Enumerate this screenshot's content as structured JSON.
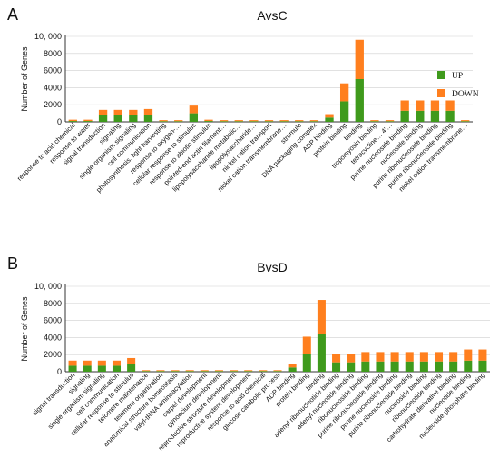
{
  "colors": {
    "up": "#3f9a1c",
    "down": "#ff7f1e",
    "axis": "#333333",
    "grid": "#cfcfcf"
  },
  "chart_data": [
    {
      "type": "bar",
      "stacked": true,
      "panel_label": "A",
      "title": "AvsC",
      "ylabel": "Number of Genes",
      "ylim": [
        0,
        10000
      ],
      "yticks": [
        "0",
        "2000",
        "4000",
        "6000",
        "8000",
        "10, 000"
      ],
      "grid": true,
      "legend_position": "right",
      "legend": [
        "UP",
        "DOWN"
      ],
      "categories": [
        "response to acid chemical",
        "response to water",
        "signal transduction",
        "signaling",
        "single organism signaling",
        "cell communication",
        "photosynthesis, light harvesting",
        "response to oxygen-…",
        "cellular response to stimulus",
        "response to abiotic stimulus",
        "pointed-end actin filament…",
        "lipopolysaccharide metabolic…",
        "lipopolysaccharide…",
        "nickel cation transport",
        "nickel cation transmembrane…",
        "stromule",
        "DNA packaging complex",
        "ADP binding",
        "protein binding",
        "binding",
        "tropomyosin binding",
        "tetracycline… 4'…",
        "purine nucleoside binding",
        "nucleoside binding",
        "purine ribonucleoside binding",
        "purine ribonucleoside binding",
        "nickel cation transmembrane…"
      ],
      "series": [
        {
          "name": "UP",
          "values": [
            100,
            100,
            800,
            800,
            800,
            800,
            80,
            80,
            1000,
            100,
            80,
            80,
            80,
            80,
            80,
            80,
            80,
            500,
            2400,
            5000,
            80,
            80,
            1300,
            1300,
            1300,
            1300,
            80
          ]
        },
        {
          "name": "DOWN",
          "values": [
            150,
            150,
            600,
            600,
            600,
            700,
            120,
            120,
            900,
            150,
            120,
            120,
            120,
            120,
            120,
            120,
            120,
            400,
            2100,
            4600,
            120,
            120,
            1200,
            1200,
            1200,
            1200,
            120
          ]
        }
      ]
    },
    {
      "type": "bar",
      "stacked": true,
      "panel_label": "B",
      "title": "BvsD",
      "ylabel": "Number of Genes",
      "ylim": [
        0,
        10000
      ],
      "yticks": [
        "0",
        "2000",
        "4000",
        "6000",
        "8000",
        "10, 000"
      ],
      "grid": true,
      "categories": [
        "signal transduction",
        "signaling",
        "single organism signaling",
        "cell communication",
        "cellular response to stimulus",
        "telomere maintenance",
        "telomere organization",
        "anatomical structure homeostasis",
        "valyl-tRNA aminoacylation",
        "carpel development",
        "gynoecium development",
        "reproductive structure development",
        "reproductive system development",
        "response to acid chemical",
        "glucose catabolic process",
        "ADP binding",
        "protein binding",
        "binding",
        "adenyl ribonucleotide binding",
        "adenyl nucleotide binding",
        "ribonucleoside binding",
        "purine ribonucleoside binding",
        "purine nucleoside binding",
        "purine ribonucleotide binding",
        "nucleoside binding",
        "ribonucleotide binding",
        "carbohydrate derivative binding",
        "nucleotide binding",
        "nucleoside phosphate binding"
      ],
      "series": [
        {
          "name": "UP",
          "values": [
            700,
            700,
            700,
            700,
            900,
            80,
            80,
            80,
            80,
            80,
            80,
            80,
            80,
            80,
            80,
            500,
            2100,
            4400,
            1100,
            1100,
            1200,
            1200,
            1200,
            1200,
            1200,
            1200,
            1200,
            1300,
            1300
          ]
        },
        {
          "name": "DOWN",
          "values": [
            600,
            600,
            600,
            600,
            700,
            100,
            100,
            100,
            100,
            100,
            100,
            100,
            100,
            100,
            100,
            400,
            2000,
            4000,
            1000,
            1000,
            1100,
            1100,
            1100,
            1100,
            1100,
            1100,
            1100,
            1300,
            1300
          ]
        }
      ]
    }
  ]
}
